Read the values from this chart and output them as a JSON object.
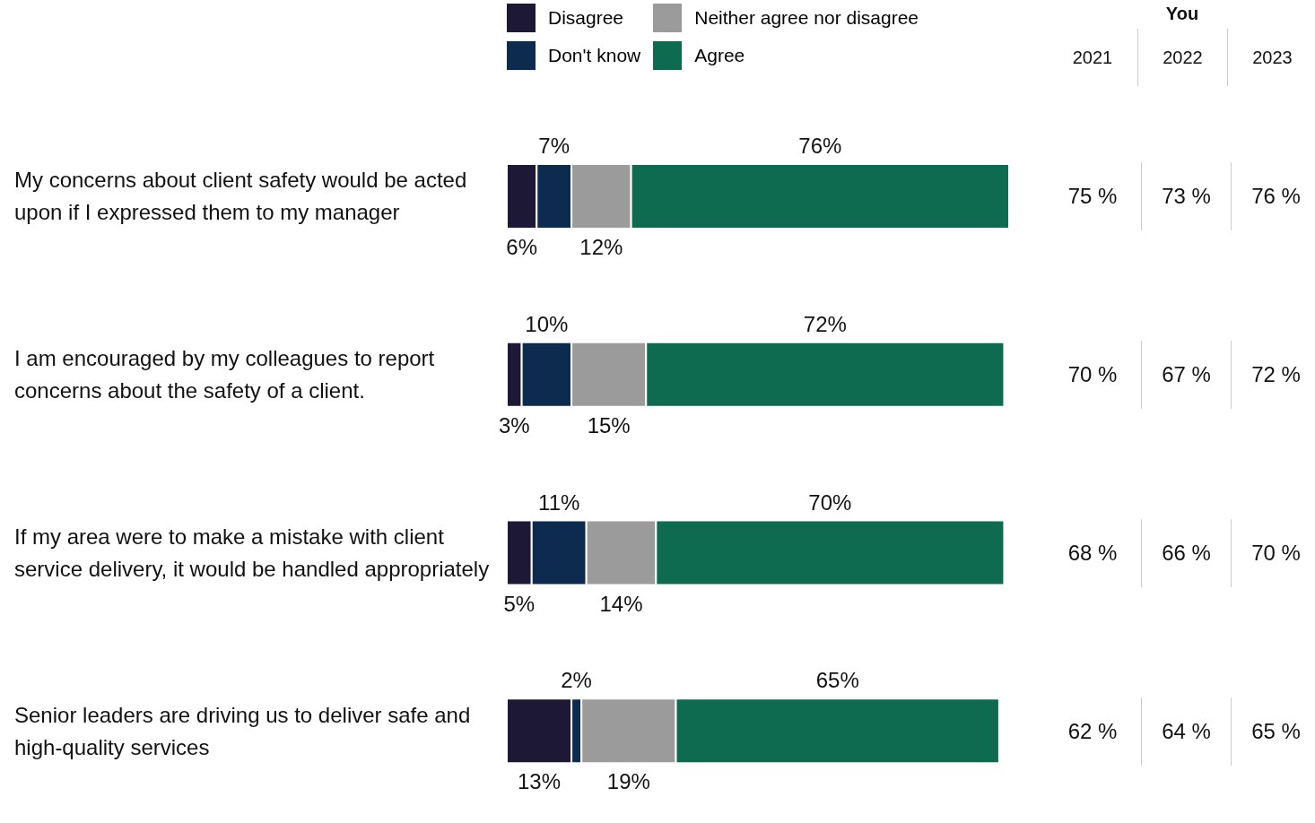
{
  "chart_data": [
    {
      "type": "bar",
      "orientation": "horizontal",
      "stacked": true,
      "legend": "top",
      "tick_labels": "y",
      "categories": [
        "My concerns about client safety would be acted upon if I expressed them to my manager",
        "I am encouraged by my colleagues to report concerns about the safety of a client.",
        "If my area were to make a mistake with client service delivery, it would be handled appropriately",
        "Senior leaders are driving us to deliver safe and high-quality services"
      ],
      "series": [
        {
          "name": "Disagree",
          "color": "#1c1836",
          "values": [
            6,
            3,
            5,
            13
          ],
          "value_labels": [
            "6%",
            "3%",
            "5%",
            "13%"
          ]
        },
        {
          "name": "Don't know",
          "color": "#0d2a4f",
          "values": [
            7,
            10,
            11,
            2
          ],
          "value_labels": [
            "7%",
            "10%",
            "11%",
            "2%"
          ]
        },
        {
          "name": "Neither agree nor disagree",
          "color": "#9b9b9b",
          "values": [
            12,
            15,
            14,
            19
          ],
          "value_labels": [
            "12%",
            "15%",
            "14%",
            "19%"
          ]
        },
        {
          "name": "Agree",
          "color": "#0e6b50",
          "values": [
            76,
            72,
            70,
            65
          ],
          "value_labels": [
            "76%",
            "72%",
            "70%",
            "65%"
          ]
        }
      ]
    },
    {
      "type": "other",
      "title": "You",
      "categories": [
        "2021",
        "2022",
        "2023"
      ],
      "cell_labels": [
        [
          "75 %",
          "73 %",
          "76 %"
        ],
        [
          "70 %",
          "67 %",
          "72 %"
        ],
        [
          "68 %",
          "66 %",
          "70 %"
        ],
        [
          "62 %",
          "64 %",
          "65 %"
        ]
      ]
    }
  ]
}
